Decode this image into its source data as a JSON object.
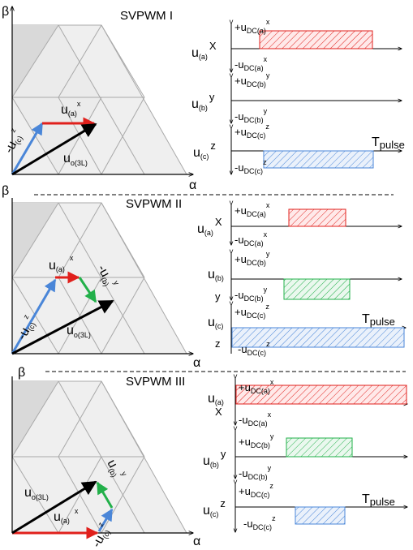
{
  "axes": {
    "beta": "β",
    "alpha": "α"
  },
  "panels": [
    {
      "title": "SVPWM I",
      "vectors": {
        "ua": "u",
        "ua_sub": "(a)",
        "ua_sup": "x",
        "uc": "-u",
        "uc_sub": "(c)",
        "uc_sup": "z",
        "uo": "u",
        "uo_sub": "o(3L)"
      },
      "rows": [
        {
          "u": "u",
          "sub": "(a)",
          "sup": "X",
          "pos": "+u",
          "pos_sub": "DC(a)",
          "pos_sup": "x",
          "neg": "-u",
          "neg_sub": "DC(a)",
          "neg_sup": "x"
        },
        {
          "u": "u",
          "sub": "(b)",
          "sup": "y",
          "pos": "+u",
          "pos_sub": "DC(b)",
          "pos_sup": "y",
          "neg": "-u",
          "neg_sub": "DC(b)",
          "neg_sup": "y"
        },
        {
          "u": "u",
          "sub": "(c)",
          "sup": "z",
          "pos": "+u",
          "pos_sub": "DC(c)",
          "pos_sup": "z",
          "neg": "-u",
          "neg_sub": "DC(c)",
          "neg_sup": "z"
        }
      ],
      "tpulse": "T",
      "tpulse_sub": "pulse"
    },
    {
      "title": "SVPWM II",
      "vectors": {
        "ua": "u",
        "ua_sub": "(a)",
        "ua_sup": "x",
        "ub": "-u",
        "ub_sub": "(b)",
        "ub_sup": "y",
        "uc": "-u",
        "uc_sub": "(c)",
        "uc_sup": "z",
        "uo": "u",
        "uo_sub": "o(3L)"
      },
      "rows": [
        {
          "u": "u",
          "sub": "(a)",
          "sup": "X",
          "pos": "+u",
          "pos_sub": "DC(a)",
          "pos_sup": "x",
          "neg": "-u",
          "neg_sub": "DC(a)",
          "neg_sup": "x"
        },
        {
          "u": "u",
          "sub": "(b)",
          "sup": "y",
          "pos": "+u",
          "pos_sub": "DC(b)",
          "pos_sup": "y",
          "neg": "-u",
          "neg_sub": "DC(b)",
          "neg_sup": "y"
        },
        {
          "u": "u",
          "sub": "(c)",
          "sup": "z",
          "pos": "+u",
          "pos_sub": "DC(c)",
          "pos_sup": "z",
          "neg": "-u",
          "neg_sub": "DC(c)",
          "neg_sup": "z"
        }
      ],
      "tpulse": "T",
      "tpulse_sub": "pulse"
    },
    {
      "title": "SVPWM III",
      "vectors": {
        "ua": "u",
        "ua_sub": "(a)",
        "ua_sup": "x",
        "ub": "u",
        "ub_sub": "(b)",
        "ub_sup": "y",
        "uc": "-u",
        "uc_sub": "(c)",
        "uc_sup": "z",
        "uo": "u",
        "uo_sub": "o(3L)"
      },
      "rows": [
        {
          "u": "u",
          "sub": "(a)",
          "sup": "X",
          "pos": "+u",
          "pos_sub": "DC(a)",
          "pos_sup": "x",
          "neg": "-u",
          "neg_sub": "DC(a)",
          "neg_sup": "x"
        },
        {
          "u": "u",
          "sub": "(b)",
          "sup": "y",
          "pos": "+u",
          "pos_sub": "DC(b)",
          "pos_sup": "y",
          "neg": "-u",
          "neg_sub": "DC(b)",
          "neg_sup": "y"
        },
        {
          "u": "u",
          "sub": "(c)",
          "sup": "z",
          "pos": "+u",
          "pos_sub": "DC(c)",
          "pos_sup": "z",
          "neg": "-u",
          "neg_sub": "DC(c)",
          "neg_sup": "z"
        }
      ],
      "tpulse": "T",
      "tpulse_sub": "pulse"
    }
  ],
  "colors": {
    "red": "#e0201c",
    "blue": "#4a86d8",
    "green": "#22b04a",
    "black": "#000000",
    "hex_light": "#efefef",
    "hex_dark": "#d9d9d9",
    "grid": "#a9a9a9"
  }
}
